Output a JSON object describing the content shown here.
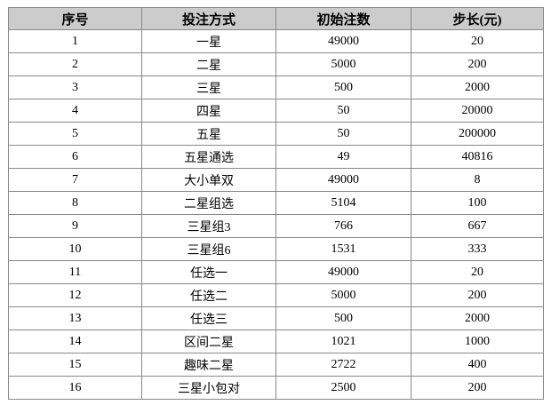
{
  "table": {
    "columns": [
      "序号",
      "投注方式",
      "初始注数",
      "步长(元)"
    ],
    "rows": [
      [
        "1",
        "一星",
        "49000",
        "20"
      ],
      [
        "2",
        "二星",
        "5000",
        "200"
      ],
      [
        "3",
        "三星",
        "500",
        "2000"
      ],
      [
        "4",
        "四星",
        "50",
        "20000"
      ],
      [
        "5",
        "五星",
        "50",
        "200000"
      ],
      [
        "6",
        "五星通选",
        "49",
        "40816"
      ],
      [
        "7",
        "大小单双",
        "49000",
        "8"
      ],
      [
        "8",
        "二星组选",
        "5104",
        "100"
      ],
      [
        "9",
        "三星组3",
        "766",
        "667"
      ],
      [
        "10",
        "三星组6",
        "1531",
        "333"
      ],
      [
        "11",
        "任选一",
        "49000",
        "20"
      ],
      [
        "12",
        "任选二",
        "5000",
        "200"
      ],
      [
        "13",
        "任选三",
        "500",
        "2000"
      ],
      [
        "14",
        "区间二星",
        "1021",
        "1000"
      ],
      [
        "15",
        "趣味二星",
        "2722",
        "400"
      ],
      [
        "16",
        "三星小包对",
        "2500",
        "200"
      ]
    ],
    "colors": {
      "header_bg": "#cccccc",
      "border": "#888888",
      "text": "#000000",
      "row_bg": "#ffffff"
    }
  },
  "chart_data": {
    "type": "table",
    "title": "",
    "columns": [
      "序号",
      "投注方式",
      "初始注数",
      "步长(元)"
    ],
    "rows": [
      [
        "1",
        "一星",
        "49000",
        "20"
      ],
      [
        "2",
        "二星",
        "5000",
        "200"
      ],
      [
        "3",
        "三星",
        "500",
        "2000"
      ],
      [
        "4",
        "四星",
        "50",
        "20000"
      ],
      [
        "5",
        "五星",
        "50",
        "200000"
      ],
      [
        "6",
        "五星通选",
        "49",
        "40816"
      ],
      [
        "7",
        "大小单双",
        "49000",
        "8"
      ],
      [
        "8",
        "二星组选",
        "5104",
        "100"
      ],
      [
        "9",
        "三星组3",
        "766",
        "667"
      ],
      [
        "10",
        "三星组6",
        "1531",
        "333"
      ],
      [
        "11",
        "任选一",
        "49000",
        "20"
      ],
      [
        "12",
        "任选二",
        "5000",
        "200"
      ],
      [
        "13",
        "任选三",
        "500",
        "2000"
      ],
      [
        "14",
        "区间二星",
        "1021",
        "1000"
      ],
      [
        "15",
        "趣味二星",
        "2722",
        "400"
      ],
      [
        "16",
        "三星小包对",
        "2500",
        "200"
      ]
    ]
  }
}
